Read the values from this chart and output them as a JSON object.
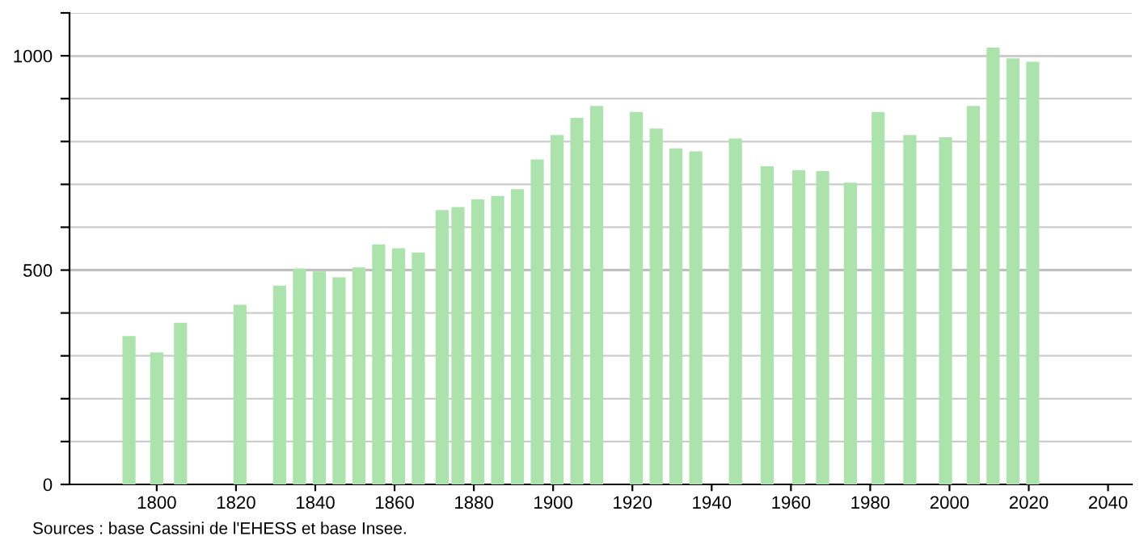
{
  "chart_data": {
    "type": "bar",
    "x": [
      1793,
      1800,
      1806,
      1821,
      1831,
      1836,
      1841,
      1846,
      1851,
      1856,
      1861,
      1866,
      1872,
      1876,
      1881,
      1886,
      1891,
      1896,
      1901,
      1906,
      1911,
      1921,
      1926,
      1931,
      1936,
      1946,
      1954,
      1962,
      1968,
      1975,
      1982,
      1990,
      1999,
      2006,
      2011,
      2016,
      2021
    ],
    "values": [
      346,
      308,
      377,
      419,
      464,
      504,
      497,
      483,
      506,
      560,
      551,
      541,
      640,
      647,
      665,
      673,
      689,
      758,
      815,
      855,
      883,
      869,
      830,
      784,
      777,
      807,
      742,
      733,
      731,
      704,
      869,
      815,
      810,
      883,
      1019,
      994,
      986
    ],
    "color": "#ace3ac",
    "xlim": [
      1778,
      2046
    ],
    "xticks": [
      1800,
      1820,
      1840,
      1860,
      1880,
      1900,
      1920,
      1940,
      1960,
      1980,
      2000,
      2020,
      2040
    ],
    "ylim": [
      0,
      1100
    ],
    "yticks": [
      0,
      {
        "value": 100,
        "label": null
      },
      {
        "value": 200,
        "label": null
      },
      {
        "value": 300,
        "label": null
      },
      {
        "value": 400,
        "label": null
      },
      500,
      {
        "value": 600,
        "label": null
      },
      {
        "value": 700,
        "label": null
      },
      {
        "value": 800,
        "label": null
      },
      {
        "value": 900,
        "label": null
      },
      1000,
      {
        "value": 1100,
        "label": null
      }
    ],
    "grid": "y",
    "annotations": [
      "Sources : base Cassini de l'EHESS et base Insee."
    ]
  }
}
